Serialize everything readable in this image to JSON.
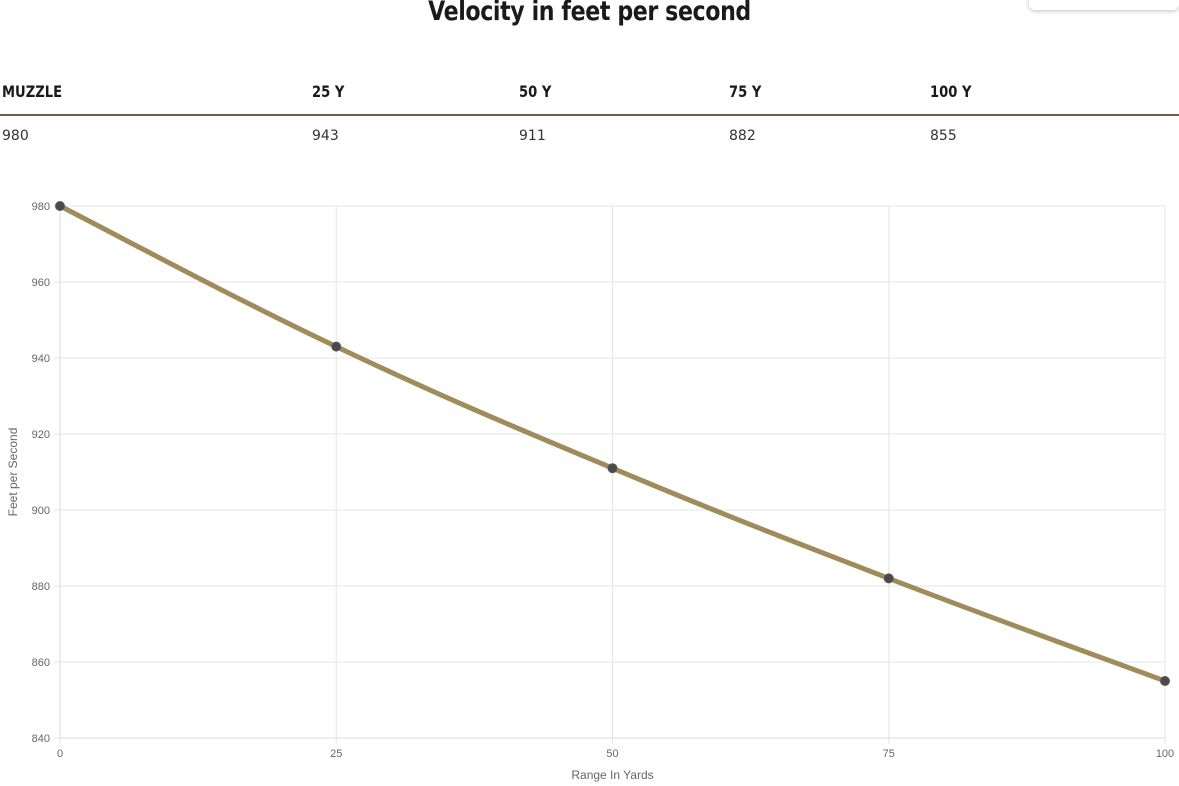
{
  "title": "Velocity in feet per second",
  "table": {
    "headers": [
      "MUZZLE",
      "25 Y",
      "50 Y",
      "75 Y",
      "100 Y"
    ],
    "values": [
      "980",
      "943",
      "911",
      "882",
      "855"
    ]
  },
  "colors": {
    "line": "#a08c5b",
    "point": "#4a4a4a",
    "grid": "#e5e5e5",
    "table_rule": "#6f5d45"
  },
  "chart_data": {
    "type": "line",
    "x": [
      0,
      25,
      50,
      75,
      100
    ],
    "series": [
      {
        "values": [
          980,
          943,
          911,
          882,
          855
        ]
      }
    ],
    "xlabel": "Range In Yards",
    "ylabel": "Feet per Second",
    "xlim": [
      0,
      100
    ],
    "ylim": [
      840,
      980
    ],
    "x_ticks": [
      0,
      25,
      50,
      75,
      100
    ],
    "y_ticks": [
      840,
      860,
      880,
      900,
      920,
      940,
      960,
      980
    ],
    "grid": true,
    "legend": "none"
  }
}
